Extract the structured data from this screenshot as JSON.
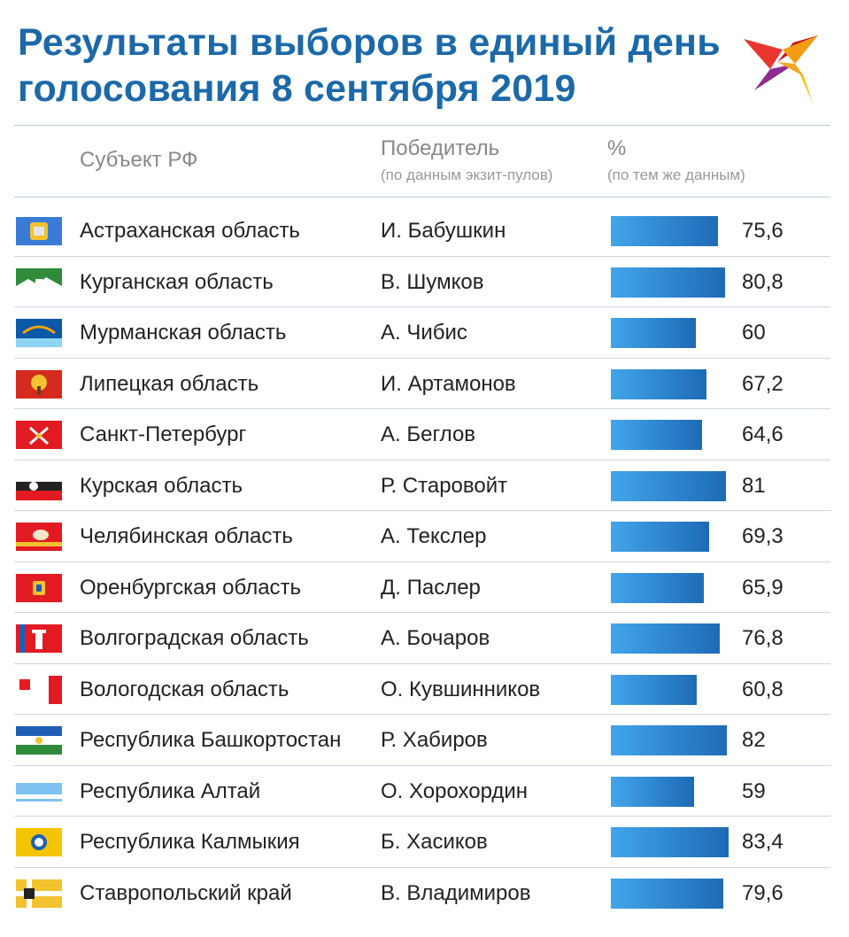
{
  "title": {
    "line1": "Результаты выборов в единый день",
    "line2": "голосования 8 сентября 2019"
  },
  "header": {
    "subject": "Субъект РФ",
    "winner": "Победитель",
    "winner_sub": "(по данным экзит-пулов)",
    "pct": "%",
    "pct_sub": "(по тем же данным)"
  },
  "colors": {
    "title": "#1c69a9",
    "bar_start": "#43a5ea",
    "bar_end": "#1d6bb5"
  },
  "chart_data": {
    "type": "bar",
    "orientation": "horizontal",
    "categories": [
      "Астраханская область",
      "Курганская область",
      "Мурманская область",
      "Липецкая область",
      "Санкт-Петербург",
      "Курская область",
      "Челябинская область",
      "Оренбургская область",
      "Волгоградская область",
      "Вологодская область",
      "Республика Башкортостан",
      "Республика Алтай",
      "Республика Калмыкия",
      "Ставропольский край"
    ],
    "series": [
      {
        "values": [
          75.6,
          80.8,
          60,
          67.2,
          64.6,
          81,
          69.3,
          65.9,
          76.8,
          60.8,
          82,
          59,
          83.4,
          79.6
        ]
      }
    ]
  },
  "rows": [
    {
      "region": "Астраханская область",
      "winner": "И. Бабушкин",
      "pct": "75,6",
      "value": 75.6,
      "flag": "astrakhan-flag"
    },
    {
      "region": "Курганская область",
      "winner": "В. Шумков",
      "pct": "80,8",
      "value": 80.8,
      "flag": "kurgan-flag"
    },
    {
      "region": "Мурманская область",
      "winner": "А. Чибис",
      "pct": "60",
      "value": 60,
      "flag": "murmansk-flag"
    },
    {
      "region": "Липецкая область",
      "winner": "И. Артамонов",
      "pct": "67,2",
      "value": 67.2,
      "flag": "lipetsk-flag"
    },
    {
      "region": "Санкт-Петербург",
      "winner": "А. Беглов",
      "pct": "64,6",
      "value": 64.6,
      "flag": "saint-petersburg-flag"
    },
    {
      "region": "Курская область",
      "winner": "Р. Старовойт",
      "pct": "81",
      "value": 81,
      "flag": "kursk-flag"
    },
    {
      "region": "Челябинская область",
      "winner": "А. Текслер",
      "pct": "69,3",
      "value": 69.3,
      "flag": "chelyabinsk-flag"
    },
    {
      "region": "Оренбургская область",
      "winner": "Д. Паслер",
      "pct": "65,9",
      "value": 65.9,
      "flag": "orenburg-flag"
    },
    {
      "region": "Волгоградская область",
      "winner": "А. Бочаров",
      "pct": "76,8",
      "value": 76.8,
      "flag": "volgograd-flag"
    },
    {
      "region": "Вологодская область",
      "winner": "О. Кувшинников",
      "pct": "60,8",
      "value": 60.8,
      "flag": "vologda-flag"
    },
    {
      "region": "Республика Башкортостан",
      "winner": "Р. Хабиров",
      "pct": "82",
      "value": 82,
      "flag": "bashkortostan-flag"
    },
    {
      "region": "Республика Алтай",
      "winner": "О. Хорохордин",
      "pct": "59",
      "value": 59,
      "flag": "altai-flag"
    },
    {
      "region": "Республика Калмыкия",
      "winner": "Б. Хасиков",
      "pct": "83,4",
      "value": 83.4,
      "flag": "kalmykia-flag"
    },
    {
      "region": "Ставропольский край",
      "winner": "В. Владимиров",
      "pct": "79,6",
      "value": 79.6,
      "flag": "stavropol-flag"
    }
  ]
}
